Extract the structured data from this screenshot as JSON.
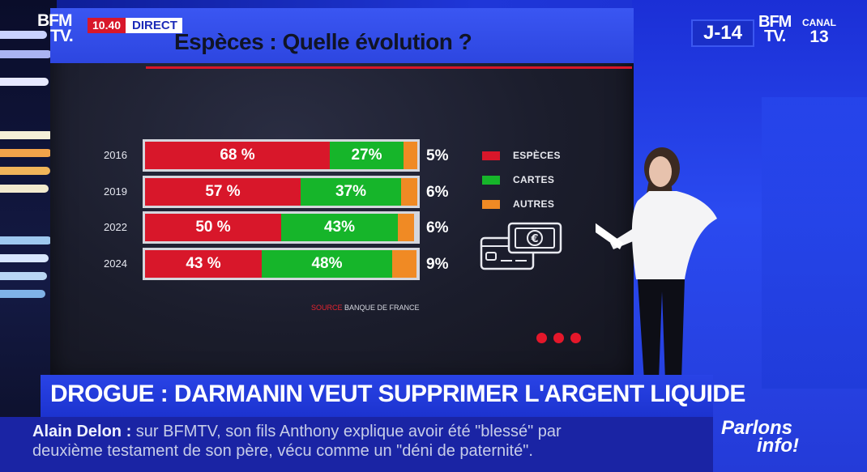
{
  "channel": {
    "logo": "BFM TV.",
    "time": "10.40",
    "live_label": "DIRECT",
    "countdown": "J-14",
    "partner_logo": "BFM TV.",
    "partner_canal": "CANAL",
    "partner_number": "13"
  },
  "chart_data": {
    "type": "bar",
    "stacked": true,
    "orientation": "horizontal",
    "title": "Espèces : Quelle évolution ?",
    "categories": [
      "2016",
      "2019",
      "2022",
      "2024"
    ],
    "series": [
      {
        "name": "ESPÈCES",
        "values": [
          68,
          57,
          50,
          43
        ],
        "labels": [
          "68 %",
          "57 %",
          "50 %",
          "43 %"
        ],
        "color": "#d8172a"
      },
      {
        "name": "CARTES",
        "values": [
          27,
          37,
          43,
          48
        ],
        "labels": [
          "27%",
          "37%",
          "43%",
          "48%"
        ],
        "color": "#16b52a"
      },
      {
        "name": "AUTRES",
        "values": [
          5,
          6,
          6,
          9
        ],
        "labels": [
          "5%",
          "6%",
          "6%",
          "9%"
        ],
        "color": "#f08a24"
      }
    ],
    "source_keyword": "SOURCE",
    "source": "BANQUE DE FRANCE",
    "legend_position": "right",
    "grid": false
  },
  "icons": {
    "payment": "banknote-and-card-icon",
    "pagination": "carousel-dots-icon"
  },
  "ticker": {
    "headline": "DROGUE : DARMANIN VEUT SUPPRIMER L'ARGENT LIQUIDE",
    "name": "Alain Delon :",
    "line1": "sur BFMTV, son fils Anthony explique avoir été \"blessé\" par",
    "line2": "deuxième testament de son père, vécu comme un \"déni de paternité\"."
  },
  "show": {
    "line1": "Parlons",
    "line2": "info!"
  },
  "colors": {
    "accent_red": "#d8172a",
    "brand_blue": "#1f36d8"
  }
}
